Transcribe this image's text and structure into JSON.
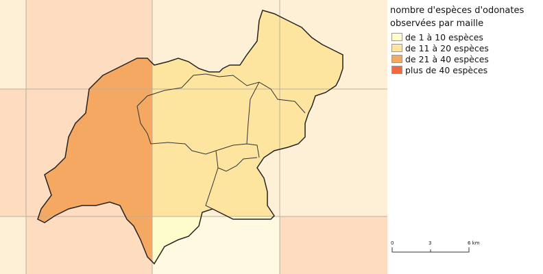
{
  "legend": {
    "title": [
      "nombre d'espèces d'odonates",
      "observées par maille"
    ],
    "items": [
      {
        "label": "de 1 à 10 espèces",
        "color": "#fffccc"
      },
      {
        "label": "de 11 à 20 espèces",
        "color": "#fde5a0"
      },
      {
        "label": "de 21 à 40 espèces",
        "color": "#f5a862"
      },
      {
        "label": "plus de 40 espèces",
        "color": "#f26a3c"
      }
    ]
  },
  "scale_bar": {
    "labels": [
      "0",
      "3",
      "6 km"
    ]
  }
}
